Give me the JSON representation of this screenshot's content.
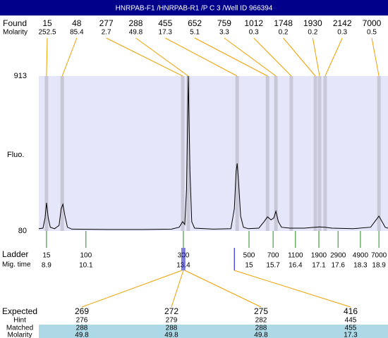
{
  "chart_data": {
    "type": "electropherogram",
    "title": "HNRPAB-F1 /HNRPAB-R1 /P C 3 /Well ID 966394",
    "ylabel": "Fluo.",
    "ylim": [
      80,
      913
    ],
    "yticks": [
      913,
      80
    ],
    "xlim": [
      0,
      100
    ],
    "fill_color": "#e6e6fa",
    "band_color": "#c8c8d8",
    "connector_color": "#f0a000",
    "ladder_color": "#228b22",
    "marker_color": "#0000cd",
    "matched_color": "#add8e6",
    "found_label": "Found",
    "molarity_label": "Molarity",
    "peaks": [
      {
        "size": 15,
        "molarity": 252.5,
        "position": 2.2
      },
      {
        "size": 48,
        "molarity": 85.4,
        "position": 6.7
      },
      {
        "size": 277,
        "molarity": 2.7,
        "position": 41.2
      },
      {
        "size": 288,
        "molarity": 49.8,
        "position": 42.8
      },
      {
        "size": 455,
        "molarity": 17.3,
        "position": 56.8
      },
      {
        "size": 652,
        "molarity": 5.1,
        "position": 65.5
      },
      {
        "size": 759,
        "molarity": 3.3,
        "position": 67.9
      },
      {
        "size": 1012,
        "molarity": 0.3,
        "position": 72.3
      },
      {
        "size": 1748,
        "molarity": 0.2,
        "position": 79.2
      },
      {
        "size": 1930,
        "molarity": 0.2,
        "position": 80.4
      },
      {
        "size": 2142,
        "molarity": 0.3,
        "position": 82.0
      },
      {
        "size": 7000,
        "molarity": 0.5,
        "position": 97.4
      }
    ],
    "trace": {
      "color": "#000000",
      "x": [
        0,
        1.2,
        1.8,
        2.2,
        2.7,
        3.3,
        4.5,
        5.8,
        6.4,
        6.9,
        7.4,
        8.2,
        9.5,
        20,
        30,
        38,
        40.2,
        41.2,
        41.8,
        42.3,
        42.8,
        43.3,
        43.8,
        44.6,
        50,
        55,
        56,
        56.5,
        56.8,
        57.2,
        57.8,
        58.6,
        60,
        63,
        64.5,
        65.5,
        66.5,
        67.3,
        67.9,
        68.6,
        69.5,
        72,
        76,
        79,
        80.4,
        82,
        84,
        90,
        95,
        96.6,
        97.4,
        98.3,
        99.2,
        100
      ],
      "y": [
        92,
        95,
        150,
        231,
        150,
        100,
        92,
        110,
        200,
        224,
        170,
        100,
        90,
        88,
        88,
        90,
        100,
        130,
        115,
        300,
        913,
        400,
        130,
        95,
        90,
        92,
        200,
        400,
        443,
        350,
        160,
        100,
        92,
        95,
        130,
        156,
        140,
        150,
        186,
        130,
        100,
        95,
        95,
        100,
        102,
        100,
        95,
        92,
        100,
        140,
        160,
        130,
        100,
        95
      ]
    },
    "ladder_label": "Ladder",
    "mig_time_label": "Mig. time",
    "ladder": [
      {
        "size": 15,
        "mig_time": 8.9,
        "position": 2.2
      },
      {
        "size": 100,
        "mig_time": 10.1,
        "position": 13.5
      },
      {
        "size": 300,
        "mig_time": 13.4,
        "position": 41.4
      },
      {
        "size": 500,
        "mig_time": 15,
        "position": 60.2
      },
      {
        "size": 700,
        "mig_time": 15.7,
        "position": 67.1
      },
      {
        "size": 1100,
        "mig_time": 16.4,
        "position": 73.5
      },
      {
        "size": 1900,
        "mig_time": 17.1,
        "position": 80.2
      },
      {
        "size": 2900,
        "mig_time": 17.6,
        "position": 85.7
      },
      {
        "size": 4900,
        "mig_time": 18.3,
        "position": 92.1
      },
      {
        "size": 7000,
        "mig_time": 18.9,
        "position": 97.4
      }
    ],
    "expected_label": "Expected",
    "hint_label": "Hint",
    "matched_label": "Matched",
    "molarity2_label": "Molarity",
    "expected": [
      {
        "expected": 269,
        "hint": 276,
        "matched": 288,
        "molarity": 49.8,
        "marker_position": 41.0
      },
      {
        "expected": 272,
        "hint": 279,
        "matched": 288,
        "molarity": 49.8,
        "marker_position": 41.4
      },
      {
        "expected": 275,
        "hint": 282,
        "matched": 288,
        "molarity": 49.8,
        "marker_position": 41.8
      },
      {
        "expected": 416,
        "hint": 445,
        "matched": 455,
        "molarity": 17.3,
        "marker_position": 56.0
      }
    ]
  }
}
